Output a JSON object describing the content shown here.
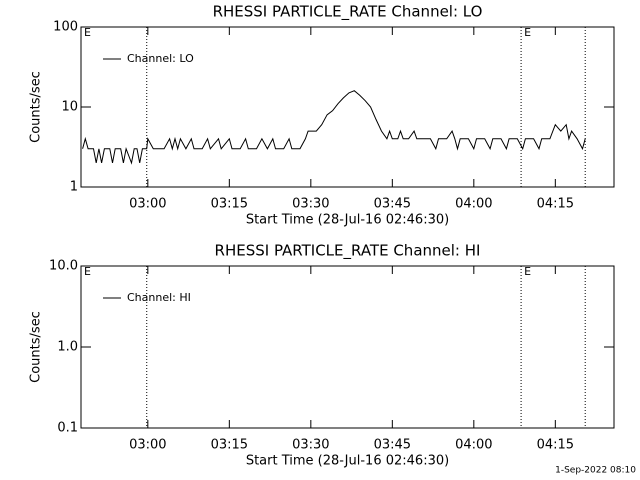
{
  "chart_data": [
    {
      "type": "line",
      "title": "RHESSI PARTICLE_RATE Channel: LO",
      "xlabel": "Start Time (28-Jul-16 02:46:30)",
      "ylabel": "Counts/sec",
      "log_y": true,
      "legend": "upper left",
      "xlim": [
        167.7,
        265.8
      ],
      "xticks": [
        {
          "value": 180,
          "label": "03:00"
        },
        {
          "value": 195,
          "label": "03:15"
        },
        {
          "value": 210,
          "label": "03:30"
        },
        {
          "value": 225,
          "label": "03:45"
        },
        {
          "value": 240,
          "label": "04:00"
        },
        {
          "value": 255,
          "label": "04:15"
        }
      ],
      "ylim": [
        1,
        100
      ],
      "yticks": [
        1,
        10,
        100
      ],
      "vlines": [
        179.8,
        248.7,
        260.5
      ],
      "annotations": [
        {
          "text": "E",
          "x": 167.7
        },
        {
          "text": "E",
          "x": 248.7
        }
      ],
      "x": [
        168,
        168.5,
        169,
        170,
        170.5,
        171,
        171.5,
        172,
        173,
        173.5,
        174,
        175,
        175.5,
        176,
        177,
        177.5,
        178,
        178.5,
        179,
        179.8,
        180,
        181,
        183,
        184,
        184.5,
        185,
        185.5,
        186,
        187,
        188,
        188.5,
        190,
        191,
        191.5,
        193,
        193.5,
        195,
        195.5,
        197,
        198,
        198.5,
        200,
        201,
        202,
        203,
        203.5,
        205,
        206,
        206.5,
        208,
        209,
        209.5,
        211,
        212,
        213,
        214,
        215,
        216,
        217,
        218,
        219,
        220,
        221,
        222,
        223,
        224,
        224.5,
        225,
        226,
        226.5,
        227,
        228,
        229,
        229.5,
        231,
        232,
        233,
        233.5,
        235,
        236,
        236.5,
        237,
        237.5,
        239,
        240,
        240.5,
        242,
        243,
        243.5,
        245,
        246,
        246.5,
        248,
        249,
        249.5,
        251,
        252,
        252.5,
        254,
        255,
        256,
        257,
        257.5,
        258,
        259,
        260,
        260.5
      ],
      "series": [
        {
          "name": "Channel: LO",
          "color": "#000000",
          "values": [
            3,
            4,
            3,
            3,
            2,
            3,
            2,
            3,
            3,
            2,
            3,
            3,
            2,
            3,
            2,
            3,
            3,
            2,
            3,
            3,
            4,
            3,
            3,
            4,
            3,
            4,
            3,
            4,
            3,
            4,
            3,
            3,
            4,
            3,
            4,
            3,
            4,
            3,
            3,
            4,
            3,
            3,
            4,
            3,
            4,
            3,
            3,
            4,
            3,
            3,
            4,
            5,
            5,
            6,
            8,
            9,
            11,
            13,
            15,
            16,
            14,
            12,
            10,
            7,
            5,
            4,
            5,
            4,
            4,
            5,
            4,
            4,
            5,
            4,
            4,
            4,
            3,
            4,
            4,
            5,
            4,
            3,
            4,
            4,
            3,
            4,
            4,
            3,
            4,
            4,
            3,
            4,
            4,
            3,
            4,
            4,
            3,
            4,
            4,
            6,
            5,
            6,
            4,
            5,
            4,
            3,
            4
          ]
        }
      ]
    },
    {
      "type": "line",
      "title": "RHESSI PARTICLE_RATE Channel: HI",
      "xlabel": "Start Time (28-Jul-16 02:46:30)",
      "ylabel": "Counts/sec",
      "log_y": true,
      "legend": "upper left",
      "xlim": [
        167.7,
        265.8
      ],
      "xticks": [
        {
          "value": 180,
          "label": "03:00"
        },
        {
          "value": 195,
          "label": "03:15"
        },
        {
          "value": 210,
          "label": "03:30"
        },
        {
          "value": 225,
          "label": "03:45"
        },
        {
          "value": 240,
          "label": "04:00"
        },
        {
          "value": 255,
          "label": "04:15"
        }
      ],
      "ylim": [
        0.1,
        10
      ],
      "yticks": [
        {
          "value": 0.1,
          "label": "0.1"
        },
        {
          "value": 1,
          "label": "1.0"
        },
        {
          "value": 10,
          "label": "10.0"
        }
      ],
      "vlines": [
        179.8,
        248.7,
        260.5
      ],
      "annotations": [
        {
          "text": "E",
          "x": 167.7
        },
        {
          "text": "E",
          "x": 248.7
        }
      ],
      "x": [],
      "series": [
        {
          "name": "Channel: HI",
          "color": "#000000",
          "values": []
        }
      ]
    }
  ],
  "footer": "1-Sep-2022 08:10"
}
